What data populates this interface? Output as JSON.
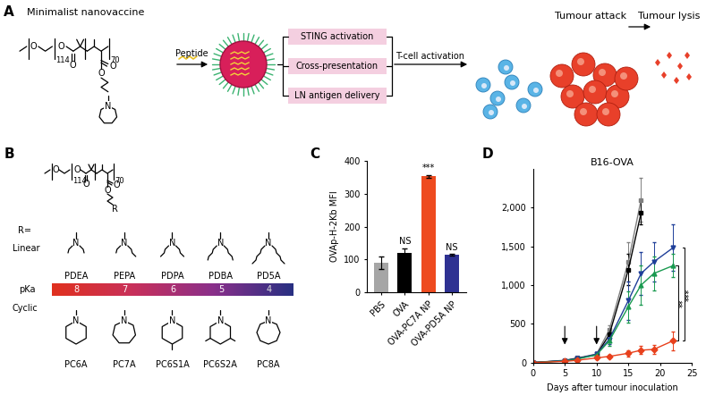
{
  "panel_labels": {
    "a": "A",
    "b": "B",
    "c": "C",
    "d": "D"
  },
  "panel_a": {
    "title": "Minimalist nanovaccine",
    "structure": {
      "oxygen": "O",
      "nitrogen": "N",
      "peg_units": "114",
      "monomer_units": "70"
    },
    "payload": "Peptide",
    "mechanisms": [
      "STING activation",
      "Cross-presentation",
      "LN antigen delivery"
    ],
    "outcome": "T-cell activation",
    "steps": [
      "Tumour attack",
      "Tumour lysis"
    ]
  },
  "panel_b": {
    "structure": {
      "oxygen": "O",
      "peg_units": "114",
      "monomer_units": "70",
      "substituent": "R",
      "substituent_label": "R="
    },
    "nitrogen": "N",
    "linear_label": "Linear",
    "linear": [
      "PDEA",
      "PEPA",
      "PDPA",
      "PDBA",
      "PD5A"
    ],
    "pka_label": "pKa",
    "pka": [
      8,
      7,
      6,
      5,
      4
    ],
    "cyclic_label": "Cyclic",
    "cyclic": [
      "PC6A",
      "PC7A",
      "PC6S1A",
      "PC6S2A",
      "PC8A"
    ]
  },
  "chart_data": [
    {
      "type": "bar",
      "y_label": "OVAp-H-2Kb MFI",
      "categories": [
        "PBS",
        "OVA",
        "OVA-PC7A NP",
        "OVA-PD5A NP"
      ],
      "values": [
        90,
        120,
        352,
        115
      ],
      "errors": [
        18,
        15,
        5,
        3
      ],
      "colors": [
        "#a6a6a6",
        "#000000",
        "#ee4b1f",
        "#2e3192"
      ],
      "annotations": [
        null,
        "NS",
        "***",
        "NS"
      ],
      "ylim": [
        0,
        400
      ],
      "yticks": [
        0,
        100,
        200,
        300,
        400
      ]
    },
    {
      "type": "line",
      "title": "B16-OVA",
      "x_label": "Days after tumour inoculation",
      "xlim": [
        0,
        25
      ],
      "xticks": [
        0,
        5,
        10,
        15,
        20,
        25
      ],
      "ylim": [
        0,
        2500
      ],
      "yticks": [
        0,
        500,
        {
          "value": 1000,
          "label": "1,000"
        },
        {
          "value": 1500,
          "label": "1,500"
        },
        {
          "value": 2000,
          "label": "2,000"
        }
      ],
      "treatment_days": [
        5,
        10
      ],
      "series": [
        {
          "color": "#808080",
          "marker": "square",
          "x": [
            0,
            5,
            7,
            10,
            12,
            15,
            17
          ],
          "values": [
            0,
            30,
            60,
            110,
            420,
            1300,
            2100
          ],
          "errors": [
            0,
            10,
            20,
            30,
            60,
            250,
            280
          ]
        },
        {
          "color": "#000000",
          "marker": "square",
          "x": [
            0,
            5,
            7,
            10,
            12,
            15,
            17
          ],
          "values": [
            0,
            25,
            55,
            100,
            360,
            1200,
            1930
          ],
          "errors": [
            0,
            10,
            20,
            30,
            60,
            200,
            150
          ]
        },
        {
          "color": "#1f3f99",
          "marker": "triangle_down",
          "x": [
            0,
            5,
            7,
            10,
            12,
            15,
            17,
            19,
            22
          ],
          "values": [
            0,
            25,
            50,
            110,
            300,
            800,
            1150,
            1300,
            1480
          ],
          "errors": [
            0,
            10,
            20,
            30,
            60,
            250,
            280,
            250,
            300
          ]
        },
        {
          "color": "#1a9a50",
          "marker": "triangle_up",
          "x": [
            0,
            5,
            7,
            10,
            12,
            15,
            17,
            19,
            22
          ],
          "values": [
            0,
            20,
            45,
            100,
            280,
            720,
            1000,
            1150,
            1250
          ],
          "errors": [
            0,
            10,
            20,
            30,
            60,
            200,
            250,
            220,
            150
          ]
        },
        {
          "color": "#e8401c",
          "marker": "diamond",
          "x": [
            0,
            5,
            7,
            10,
            12,
            15,
            17,
            19,
            22
          ],
          "values": [
            0,
            15,
            30,
            60,
            80,
            120,
            160,
            170,
            280
          ],
          "errors": [
            0,
            5,
            10,
            15,
            20,
            40,
            50,
            60,
            120
          ]
        }
      ],
      "significance": [
        {
          "label": "**",
          "series": [
            3,
            4
          ]
        },
        {
          "label": "***",
          "series": [
            2,
            4
          ]
        }
      ]
    }
  ]
}
